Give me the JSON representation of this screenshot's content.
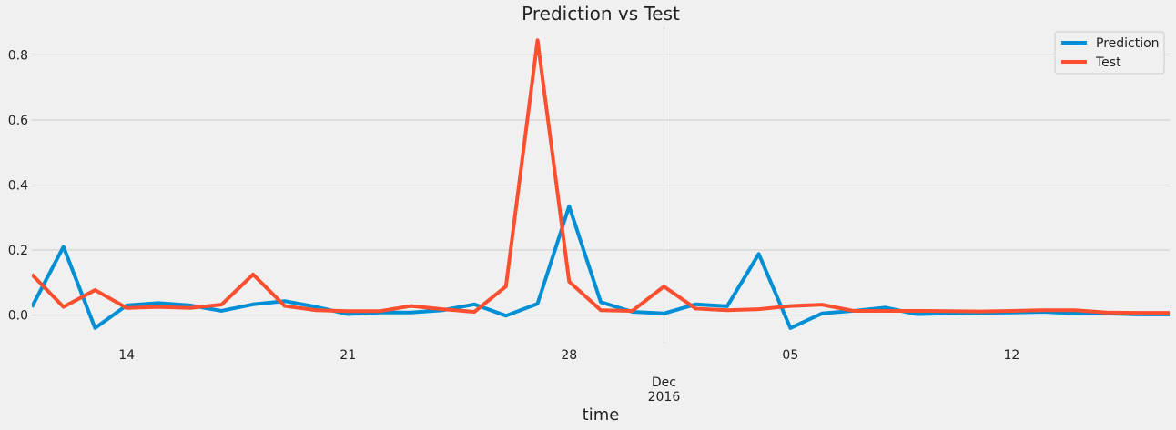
{
  "chart_data": {
    "type": "line",
    "title": "Prediction vs Test",
    "xlabel": "time",
    "ylabel": "",
    "x_start": "2016-11-11",
    "x_end": "2016-12-17",
    "x": [
      "2016-11-11",
      "2016-11-12",
      "2016-11-13",
      "2016-11-14",
      "2016-11-15",
      "2016-11-16",
      "2016-11-17",
      "2016-11-18",
      "2016-11-19",
      "2016-11-20",
      "2016-11-21",
      "2016-11-22",
      "2016-11-23",
      "2016-11-24",
      "2016-11-25",
      "2016-11-26",
      "2016-11-27",
      "2016-11-28",
      "2016-11-29",
      "2016-11-30",
      "2016-12-01",
      "2016-12-02",
      "2016-12-03",
      "2016-12-04",
      "2016-12-05",
      "2016-12-06",
      "2016-12-07",
      "2016-12-08",
      "2016-12-09",
      "2016-12-10",
      "2016-12-11",
      "2016-12-12",
      "2016-12-13",
      "2016-12-14",
      "2016-12-15",
      "2016-12-16",
      "2016-12-17"
    ],
    "series": [
      {
        "name": "Prediction",
        "color": "#008fd5",
        "values": [
          0.025,
          0.21,
          -0.04,
          0.03,
          0.037,
          0.03,
          0.013,
          0.033,
          0.043,
          0.025,
          0.003,
          0.008,
          0.008,
          0.015,
          0.033,
          -0.002,
          0.035,
          0.335,
          0.04,
          0.01,
          0.005,
          0.033,
          0.027,
          0.188,
          -0.04,
          0.005,
          0.013,
          0.023,
          0.003,
          0.005,
          0.007,
          0.008,
          0.01,
          0.005,
          0.005,
          0.002,
          0.002
        ]
      },
      {
        "name": "Test",
        "color": "#fc4f30",
        "values": [
          0.125,
          0.025,
          0.077,
          0.022,
          0.025,
          0.022,
          0.032,
          0.125,
          0.028,
          0.015,
          0.012,
          0.012,
          0.028,
          0.018,
          0.01,
          0.088,
          0.845,
          0.103,
          0.015,
          0.013,
          0.088,
          0.02,
          0.015,
          0.018,
          0.028,
          0.032,
          0.013,
          0.013,
          0.013,
          0.012,
          0.011,
          0.013,
          0.015,
          0.015,
          0.008,
          0.007,
          0.007
        ]
      }
    ],
    "ylim": [
      -0.085,
      0.885
    ],
    "yticks": [
      0.0,
      0.2,
      0.4,
      0.6,
      0.8
    ],
    "ytick_labels": [
      "0.0",
      "0.2",
      "0.4",
      "0.6",
      "0.8"
    ],
    "xticks": [
      {
        "date": "2016-11-14",
        "label": "14"
      },
      {
        "date": "2016-11-21",
        "label": "21"
      },
      {
        "date": "2016-11-28",
        "label": "28"
      },
      {
        "date": "2016-12-05",
        "label": "05"
      },
      {
        "date": "2016-12-12",
        "label": "12"
      }
    ],
    "xtick_major": {
      "date": "2016-12-01",
      "label_line1": "Dec",
      "label_line2": "2016"
    },
    "grid": true,
    "legend_position": "top-right"
  }
}
